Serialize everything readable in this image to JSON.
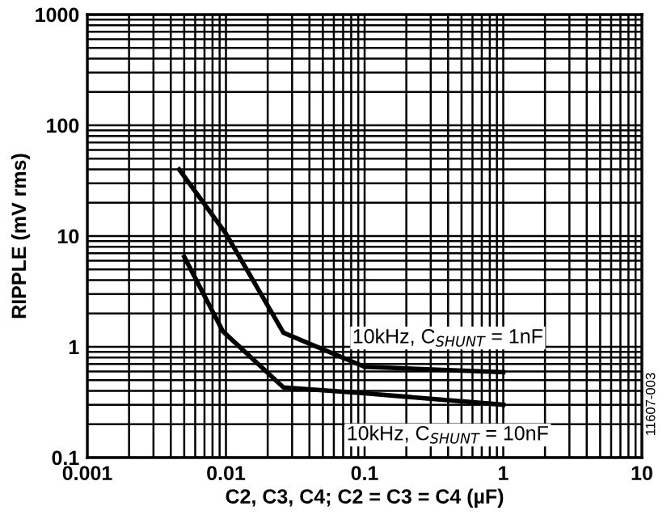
{
  "chart_data": {
    "type": "line",
    "xlabel": "C2, C3, C4; C2 = C3 = C4 (µF)",
    "ylabel": "RIPPLE (mV rms)",
    "log": "xy",
    "xlim": [
      0.001,
      10
    ],
    "ylim": [
      0.1,
      1000
    ],
    "xticks": [
      0.001,
      0.01,
      0.1,
      1,
      10
    ],
    "yticks": [
      0.1,
      1,
      10,
      100,
      1000
    ],
    "grid": true,
    "legend": false,
    "line_style": "solid",
    "marker": "none",
    "series": [
      {
        "name": "10kHz, C$_{SHUNT}$ = 1nF",
        "color": "#000000",
        "x": [
          0.0046,
          0.01,
          0.026,
          0.1,
          1
        ],
        "values": [
          40,
          10.5,
          1.34,
          0.66,
          0.59
        ]
      },
      {
        "name": "10kHz, C$_{SHUNT}$ = 10nF",
        "color": "#000000",
        "x": [
          0.005,
          0.0095,
          0.026,
          0.1,
          1
        ],
        "values": [
          6.5,
          1.38,
          0.43,
          0.38,
          0.3
        ]
      }
    ],
    "annotations": [
      "11607-003"
    ]
  }
}
